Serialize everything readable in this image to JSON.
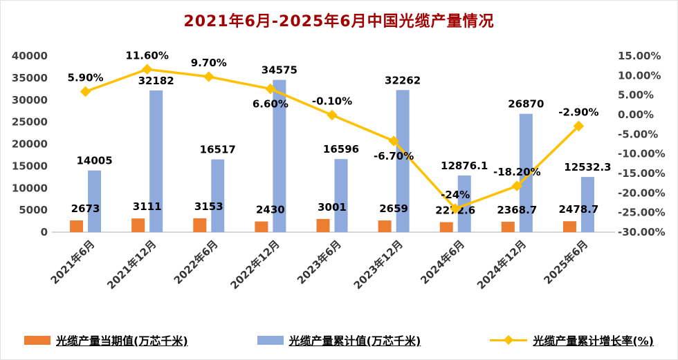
{
  "colors": {
    "title": "#A00000",
    "current_bar": "#ED7D31",
    "cumulative_bar": "#8FAADC",
    "growth_line": "#FFC000",
    "axis_text": "#404040",
    "category_text": "#333333",
    "label_text": "#000000",
    "axis_line": "#c9c9c9"
  },
  "chart_data": {
    "type": "bar",
    "title": "2021年6月-2025年6月中国光缆产量情况",
    "categories": [
      "2021年6月",
      "2021年12月",
      "2022年6月",
      "2022年12月",
      "2023年6月",
      "2023年12月",
      "2024年6月",
      "2024年12月",
      "2025年6月"
    ],
    "series": [
      {
        "name": "光缆产量当期值(万芯千米)",
        "type": "bar",
        "axis": "left",
        "color": "#ED7D31",
        "values": [
          2673,
          3111,
          3153,
          2430,
          3001,
          2659,
          2272.6,
          2368.7,
          2478.7
        ],
        "labels": [
          "2673",
          "3111",
          "3153",
          "2430",
          "3001",
          "2659",
          "2272.6",
          "2368.7",
          "2478.7"
        ]
      },
      {
        "name": "光缆产量累计值(万芯千米)",
        "type": "bar",
        "axis": "left",
        "color": "#8FAADC",
        "values": [
          14005,
          32182,
          16517,
          34575,
          16596,
          32262,
          12876.1,
          26870,
          12532.3
        ],
        "labels": [
          "14005",
          "32182",
          "16517",
          "34575",
          "16596",
          "32262",
          "12876.1",
          "26870",
          "12532.3"
        ]
      },
      {
        "name": "光缆产量累计增长率(%)",
        "type": "line",
        "axis": "right",
        "color": "#FFC000",
        "values": [
          5.9,
          11.6,
          9.7,
          6.6,
          -0.1,
          -6.7,
          -24,
          -18.2,
          -2.9
        ],
        "labels": [
          "5.90%",
          "11.60%",
          "9.70%",
          "6.60%",
          "-0.10%",
          "-6.70%",
          "-24%",
          "-18.20%",
          "-2.90%"
        ],
        "label_placement": [
          "above",
          "above",
          "above",
          "below",
          "above",
          "below",
          "above",
          "above",
          "above"
        ]
      }
    ],
    "left_axis": {
      "min": 0,
      "max": 40000,
      "step": 5000,
      "ticks": [
        "0",
        "5000",
        "10000",
        "15000",
        "20000",
        "25000",
        "30000",
        "35000",
        "40000"
      ]
    },
    "right_axis": {
      "min": -30,
      "max": 15,
      "step": 5,
      "ticks": [
        "-30.00%",
        "-25.00%",
        "-20.00%",
        "-15.00%",
        "-10.00%",
        "-5.00%",
        "0.00%",
        "5.00%",
        "10.00%",
        "15.00%"
      ]
    },
    "grid": false,
    "legend_position": "bottom"
  }
}
